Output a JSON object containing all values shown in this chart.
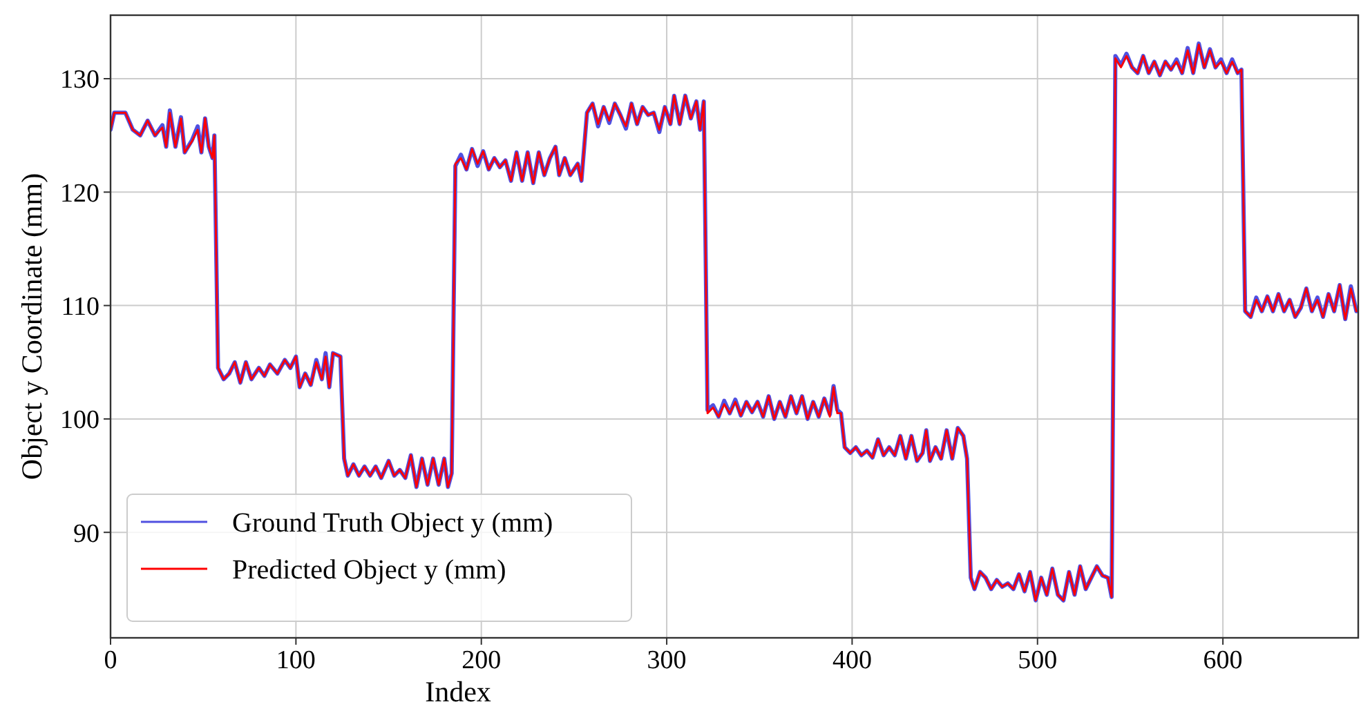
{
  "chart_data": {
    "type": "line",
    "xlabel": "Index",
    "ylabel": "Object y Coordinate (mm)",
    "xlim": [
      0,
      673
    ],
    "ylim": [
      80.7,
      135.6
    ],
    "xticks": [
      0,
      100,
      200,
      300,
      400,
      500,
      600
    ],
    "yticks": [
      90,
      100,
      110,
      120,
      130
    ],
    "grid": true,
    "legend": "bottom left",
    "line_style": "solid",
    "marker": "none",
    "x": [
      0,
      2,
      8,
      12,
      16,
      20,
      24,
      28,
      30,
      32,
      35,
      38,
      40,
      44,
      47,
      49,
      51,
      53,
      55,
      56,
      58,
      61,
      64,
      67,
      70,
      73,
      76,
      80,
      83,
      86,
      90,
      94,
      97,
      100,
      102,
      105,
      108,
      111,
      114,
      116,
      118,
      120,
      124,
      126,
      128,
      131,
      134,
      137,
      140,
      143,
      146,
      150,
      153,
      156,
      159,
      162,
      165,
      168,
      171,
      174,
      177,
      180,
      182,
      184,
      186,
      189,
      192,
      195,
      198,
      201,
      204,
      207,
      210,
      213,
      216,
      219,
      222,
      225,
      228,
      231,
      234,
      237,
      240,
      242,
      245,
      248,
      252,
      254,
      257,
      260,
      263,
      266,
      269,
      272,
      275,
      278,
      281,
      284,
      287,
      290,
      293,
      296,
      299,
      302,
      304,
      307,
      310,
      313,
      316,
      318,
      320,
      322,
      325,
      328,
      331,
      334,
      337,
      340,
      343,
      346,
      349,
      352,
      355,
      358,
      361,
      364,
      367,
      370,
      373,
      376,
      379,
      382,
      385,
      388,
      390,
      392,
      394,
      396,
      399,
      402,
      405,
      408,
      411,
      414,
      417,
      420,
      423,
      426,
      429,
      432,
      435,
      438,
      440,
      442,
      445,
      448,
      451,
      454,
      457,
      460,
      462,
      464,
      466,
      469,
      472,
      475,
      478,
      481,
      484,
      487,
      490,
      493,
      496,
      499,
      502,
      505,
      508,
      511,
      514,
      517,
      520,
      523,
      526,
      529,
      532,
      535,
      538,
      540,
      542,
      545,
      548,
      551,
      554,
      557,
      560,
      563,
      566,
      569,
      572,
      575,
      578,
      581,
      584,
      587,
      590,
      593,
      596,
      599,
      602,
      605,
      608,
      610,
      612,
      615,
      618,
      621,
      624,
      627,
      630,
      633,
      636,
      639,
      642,
      645,
      648,
      651,
      654,
      657,
      660,
      663,
      666,
      669,
      672
    ],
    "series": [
      {
        "name": "Ground Truth Object y (mm)",
        "color": "#5050e0",
        "values": [
          125.5,
          127,
          127,
          125.5,
          125,
          126.3,
          125,
          125.9,
          124,
          127.2,
          124,
          126.6,
          123.5,
          124.6,
          125.8,
          123.5,
          126.5,
          124,
          123,
          125,
          104.5,
          103.5,
          104,
          105,
          103.2,
          105,
          103.5,
          104.5,
          103.8,
          104.8,
          104,
          105.2,
          104.5,
          105.5,
          102.8,
          104,
          103,
          105.2,
          103.5,
          105.8,
          102.8,
          105.8,
          105.5,
          96.5,
          95,
          96,
          95,
          95.8,
          95,
          95.8,
          94.8,
          96.3,
          95,
          95.5,
          94.8,
          96.8,
          94,
          96.5,
          94.2,
          96.5,
          94.2,
          96.5,
          94,
          95.2,
          122.3,
          123.3,
          122,
          123.8,
          122.3,
          123.6,
          122,
          123,
          122.2,
          122.8,
          121,
          123.5,
          121,
          123.5,
          120.8,
          123.5,
          121.5,
          123,
          124,
          121.5,
          123,
          121.5,
          122.5,
          121,
          127,
          127.8,
          125.8,
          127.5,
          126.1,
          127.8,
          126.8,
          125.6,
          127.8,
          126,
          127.5,
          126.8,
          127,
          125.3,
          127.5,
          126,
          128.5,
          126,
          128.5,
          126.5,
          128,
          125.5,
          128,
          100.8,
          101.2,
          100.2,
          101.6,
          100.5,
          101.7,
          100.3,
          101.5,
          100.6,
          101.5,
          100.2,
          102,
          100,
          101.5,
          100.2,
          102,
          100.5,
          102,
          100,
          101.5,
          100.2,
          101.8,
          100.4,
          102.9,
          100.8,
          100.5,
          97.5,
          97,
          97.5,
          96.8,
          97.2,
          96.6,
          98.2,
          96.8,
          97.5,
          96.8,
          98.5,
          96.5,
          98.5,
          96.3,
          97,
          99,
          96.3,
          97.5,
          96.5,
          99,
          96.5,
          99.2,
          98.5,
          96.5,
          86,
          85,
          86.5,
          86,
          85,
          85.8,
          85.2,
          85.5,
          85,
          86.3,
          84.8,
          86.5,
          84,
          86,
          84.5,
          86.8,
          84.5,
          84,
          86.5,
          84.5,
          87,
          85,
          86,
          87,
          86.2,
          86,
          84.3,
          132,
          131.2,
          132.2,
          131,
          130.5,
          132,
          130.5,
          131.5,
          130.3,
          131.5,
          130.8,
          131.7,
          130.5,
          132.7,
          130.5,
          133.1,
          131,
          132.6,
          131,
          131.7,
          130.5,
          131.7,
          130.5,
          130.8,
          109.5,
          109,
          110.7,
          109.5,
          110.8,
          109.5,
          111,
          109.5,
          110.5,
          109,
          109.8,
          111.5,
          109.5,
          110.7,
          109,
          111,
          109.5,
          111.8,
          108.8,
          111.7,
          109.5
        ]
      },
      {
        "name": "Predicted Object y (mm)",
        "color": "#ff0000",
        "values": [
          125.5,
          127,
          127,
          125.5,
          125,
          126.3,
          125,
          125.7,
          124,
          127,
          124,
          126.5,
          123.5,
          124.5,
          125.5,
          123.5,
          126.5,
          124,
          123,
          125,
          104.5,
          103.5,
          104,
          105,
          103.2,
          105,
          103.5,
          104.5,
          103.8,
          104.8,
          104,
          105.2,
          104.5,
          105.5,
          102.8,
          104,
          103,
          105,
          103.5,
          105.5,
          102.8,
          105.8,
          105.5,
          96.5,
          95,
          96,
          95,
          95.8,
          95,
          95.8,
          94.8,
          96.3,
          95,
          95.5,
          94.8,
          96.8,
          94,
          96.5,
          94.2,
          96.5,
          94.2,
          96.5,
          94,
          95.2,
          122.5,
          123,
          122,
          123.8,
          122.5,
          123.6,
          122,
          123,
          122.2,
          122.8,
          121,
          123.5,
          121,
          123.5,
          120.8,
          123.5,
          121.5,
          123,
          124,
          121.5,
          123,
          121.5,
          122.5,
          121,
          127,
          127.8,
          126,
          127.5,
          126.3,
          127.8,
          126.8,
          125.8,
          127.8,
          126,
          127.5,
          126.8,
          127,
          125.5,
          127.5,
          126,
          128.5,
          126,
          128.5,
          126.5,
          128,
          125.5,
          128,
          100.5,
          101,
          100.2,
          101.3,
          100.5,
          101.5,
          100.3,
          101.5,
          100.6,
          101.5,
          100.2,
          102,
          100,
          101.5,
          100.2,
          102,
          100.5,
          102,
          100,
          101.5,
          100.2,
          101.8,
          100.2,
          102.8,
          100.5,
          100.5,
          97.5,
          97,
          97.5,
          96.8,
          97.2,
          96.6,
          98.2,
          96.8,
          97.5,
          96.8,
          98.5,
          96.5,
          98.5,
          96.3,
          97,
          99,
          96.3,
          97.5,
          96.5,
          99,
          96.5,
          99.2,
          98.5,
          96.5,
          86,
          85,
          86.5,
          86,
          85,
          85.8,
          85.2,
          85.5,
          85,
          86.3,
          84.8,
          86.5,
          84,
          86,
          84.5,
          86.8,
          84.5,
          84,
          86.5,
          84.5,
          87,
          85,
          86,
          87,
          86.2,
          86,
          84.3,
          131.8,
          131,
          132,
          131,
          130.5,
          132,
          130.5,
          131.5,
          130.3,
          131.5,
          130.8,
          131.5,
          130.5,
          132.5,
          130.5,
          133,
          131,
          132.5,
          131,
          131.5,
          130.5,
          131.5,
          130.5,
          130.8,
          109.5,
          109,
          110.5,
          109.5,
          110.8,
          109.5,
          111,
          109.5,
          110.5,
          109,
          109.8,
          111.5,
          109.5,
          110.5,
          109,
          111,
          109.5,
          111.8,
          108.8,
          111.5,
          109.5
        ]
      }
    ]
  }
}
